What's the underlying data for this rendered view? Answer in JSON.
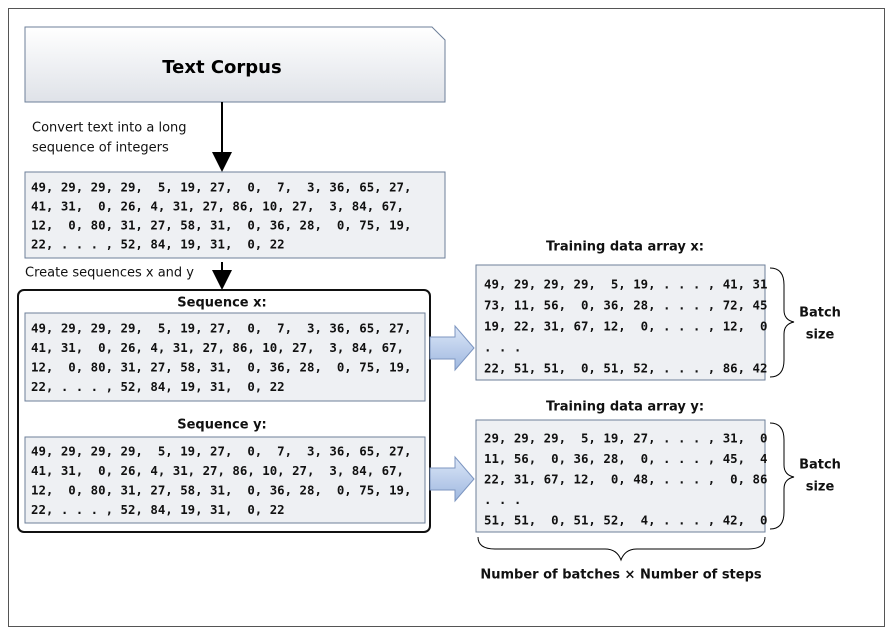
{
  "corpus": {
    "title": "Text Corpus"
  },
  "convert_label": {
    "lines": [
      "Convert text into a long",
      "sequence of integers"
    ]
  },
  "integer_sequence": {
    "lines": [
      "49, 29, 29, 29,  5, 19, 27,  0,  7,  3, 36, 65, 27,",
      "41, 31,  0, 26, 4, 31, 27, 86, 10, 27,  3, 84, 67,",
      "12,  0, 80, 31, 27, 58, 31,  0, 36, 28,  0, 75, 19,",
      "22, . . . , 52, 84, 19, 31,  0, 22"
    ]
  },
  "create_label": "Create sequences x and y",
  "sequence_x": {
    "title": "Sequence x:",
    "lines": [
      "49, 29, 29, 29,  5, 19, 27,  0,  7,  3, 36, 65, 27,",
      "41, 31,  0, 26, 4, 31, 27, 86, 10, 27,  3, 84, 67,",
      "12,  0, 80, 31, 27, 58, 31,  0, 36, 28,  0, 75, 19,",
      "22, . . . , 52, 84, 19, 31,  0, 22"
    ]
  },
  "sequence_y": {
    "title": "Sequence y:",
    "lines": [
      "49, 29, 29, 29,  5, 19, 27,  0,  7,  3, 36, 65, 27,",
      "41, 31,  0, 26, 4, 31, 27, 86, 10, 27,  3, 84, 67,",
      "12,  0, 80, 31, 27, 58, 31,  0, 36, 28,  0, 75, 19,",
      "22, . . . , 52, 84, 19, 31,  0, 22"
    ]
  },
  "training_x": {
    "title": "Training data array x:",
    "lines": [
      "49, 29, 29, 29,  5, 19, . . . , 41, 31",
      "73, 11, 56,  0, 36, 28, . . . , 72, 45",
      "19, 22, 31, 67, 12,  0, . . . , 12,  0",
      ". . .",
      "22, 51, 51,  0, 51, 52, . . . , 86, 42"
    ],
    "batch_label": [
      "Batch",
      "size"
    ]
  },
  "training_y": {
    "title": "Training data array y:",
    "lines": [
      "29, 29, 29,  5, 19, 27, . . . , 31,  0",
      "11, 56,  0, 36, 28,  0, . . . , 45,  4",
      "22, 31, 67, 12,  0, 48, . . . ,  0, 86",
      ". . .",
      "51, 51,  0, 51, 52,  4, . . . , 42,  0"
    ],
    "batch_label": [
      "Batch",
      "size"
    ]
  },
  "bottom_label": "Number of batches × Number of steps"
}
